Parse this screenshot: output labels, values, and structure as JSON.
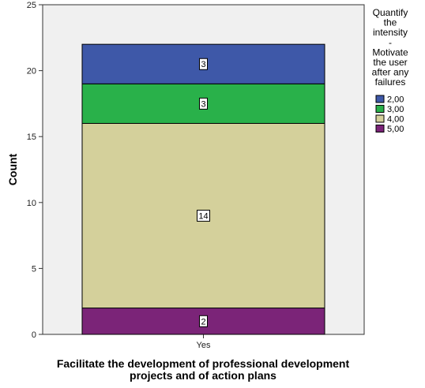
{
  "chart_data": {
    "type": "bar",
    "stacked": true,
    "categories": [
      "Yes"
    ],
    "series": [
      {
        "name": "5,00",
        "values": [
          2
        ],
        "color": "#7b2478"
      },
      {
        "name": "4,00",
        "values": [
          14
        ],
        "color": "#d4d09b"
      },
      {
        "name": "3,00",
        "values": [
          3
        ],
        "color": "#29b14a"
      },
      {
        "name": "2,00",
        "values": [
          3
        ],
        "color": "#3e58a8"
      }
    ],
    "data_labels": [
      "2",
      "14",
      "3",
      "3"
    ],
    "xlabel_lines": [
      "Facilitate the development of professional development",
      "projects and of action plans"
    ],
    "ylabel": "Count",
    "ylim": [
      0,
      25
    ],
    "yticks": [
      "0",
      "5",
      "10",
      "15",
      "20",
      "25"
    ],
    "legend": {
      "title_lines": [
        "Quantify",
        "the",
        "intensity",
        "-",
        "Motivate",
        "the user",
        "after any",
        "failures"
      ],
      "entries": [
        {
          "label": "2,00",
          "color": "#3e58a8"
        },
        {
          "label": "3,00",
          "color": "#29b14a"
        },
        {
          "label": "4,00",
          "color": "#d4d09b"
        },
        {
          "label": "5,00",
          "color": "#7b2478"
        }
      ],
      "placement": "right"
    },
    "plot_background": "#f0f0f0",
    "grid": false
  }
}
